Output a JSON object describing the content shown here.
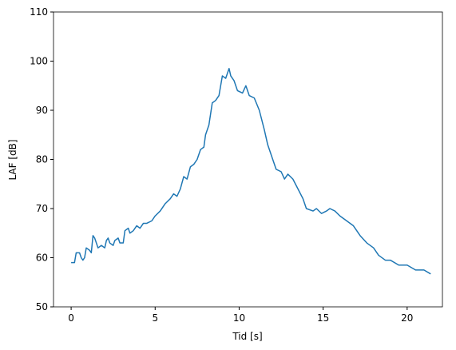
{
  "chart_data": {
    "type": "line",
    "xlabel": "Tid [s]",
    "ylabel": "LAF [dB]",
    "x": [
      0,
      0.2,
      0.3,
      0.5,
      0.6,
      0.7,
      0.8,
      0.9,
      1.1,
      1.2,
      1.3,
      1.4,
      1.5,
      1.6,
      1.8,
      2.0,
      2.1,
      2.2,
      2.3,
      2.5,
      2.6,
      2.8,
      2.9,
      3.1,
      3.2,
      3.4,
      3.5,
      3.7,
      3.9,
      4.1,
      4.3,
      4.5,
      4.8,
      5.0,
      5.3,
      5.6,
      5.9,
      6.1,
      6.3,
      6.5,
      6.7,
      6.9,
      7.1,
      7.3,
      7.5,
      7.7,
      7.9,
      8.0,
      8.2,
      8.4,
      8.6,
      8.8,
      9.0,
      9.2,
      9.4,
      9.5,
      9.7,
      9.9,
      10.2,
      10.4,
      10.6,
      10.9,
      11.2,
      11.5,
      11.7,
      12.0,
      12.2,
      12.5,
      12.7,
      12.9,
      13.2,
      13.5,
      13.8,
      14.0,
      14.4,
      14.6,
      14.9,
      15.2,
      15.4,
      15.7,
      16.0,
      16.4,
      16.8,
      17.2,
      17.6,
      18.0,
      18.3,
      18.7,
      19.0,
      19.5,
      20.0,
      20.5,
      21.0,
      21.4
    ],
    "series": [
      {
        "color": "#1f77b4",
        "values": [
          59,
          59,
          61,
          61,
          60,
          59.5,
          60,
          62,
          61.5,
          61,
          64.5,
          64,
          63,
          62,
          62.5,
          62,
          63.5,
          64,
          63,
          62.5,
          63.5,
          64,
          63,
          63,
          65.5,
          66,
          65,
          65.5,
          66.5,
          66,
          67,
          67,
          67.5,
          68.5,
          69.5,
          71,
          72,
          73,
          72.5,
          74,
          76.5,
          76,
          78.5,
          79,
          80,
          82,
          82.5,
          85,
          87,
          91.5,
          92,
          93,
          97,
          96.5,
          98.5,
          97,
          96,
          94,
          93.5,
          95,
          93,
          92.5,
          90,
          86,
          83,
          80,
          78,
          77.5,
          76,
          77,
          76,
          74,
          72,
          70,
          69.5,
          70,
          69,
          69.5,
          70,
          69.5,
          68.5,
          67.5,
          66.5,
          64.5,
          63,
          62,
          60.5,
          59.5,
          59.5,
          58.5,
          58.5,
          57.5,
          57.5,
          56.7
        ]
      }
    ],
    "xlim": [
      -1.05,
      22.1
    ],
    "ylim": [
      50,
      110
    ],
    "xticks": [
      0,
      5,
      10,
      15,
      20
    ],
    "yticks": [
      50,
      60,
      70,
      80,
      90,
      100,
      110
    ],
    "grid": false
  }
}
